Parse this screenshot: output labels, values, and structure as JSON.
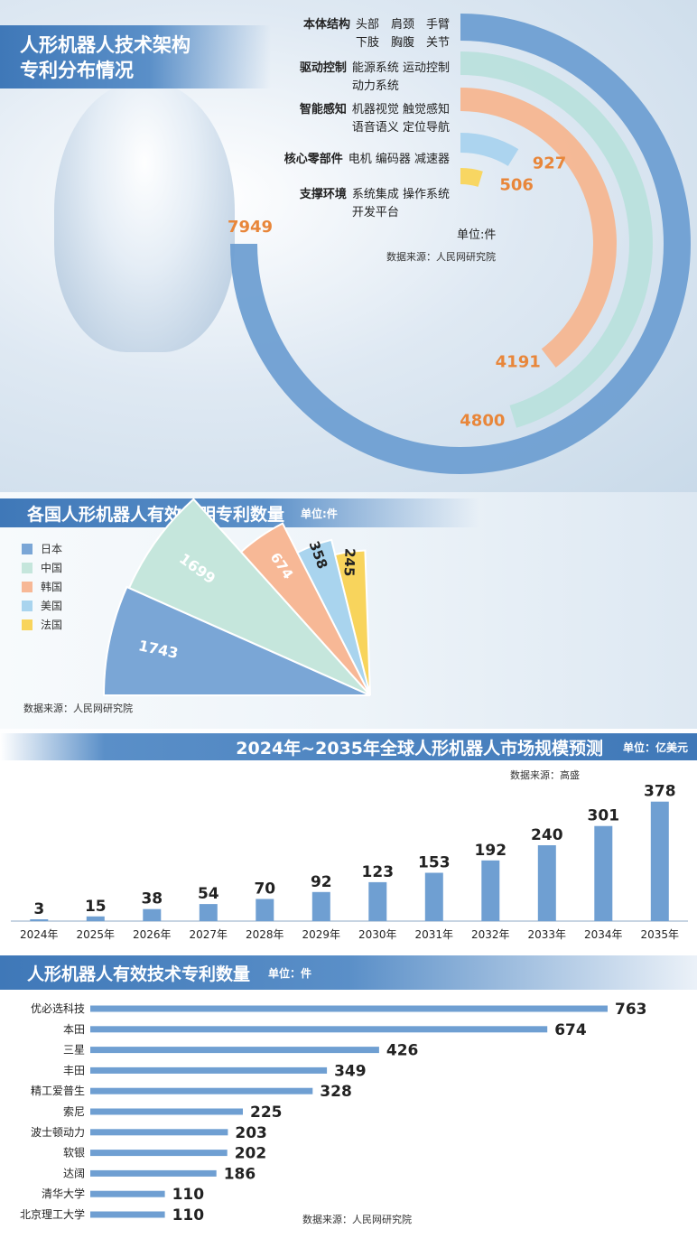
{
  "arc_section": {
    "title_line1": "人形机器人技术架构",
    "title_line2": "专利分布情况",
    "unit": "单位:件",
    "source": "数据来源：人民网研究院",
    "categories": [
      {
        "name": "本体结构",
        "items_line1": "头部　肩颈　手臂",
        "items_line2": "下肢　胸腹　关节"
      },
      {
        "name": "驱动控制",
        "items_line1": "能源系统  运动控制",
        "items_line2": "动力系统"
      },
      {
        "name": "智能感知",
        "items_line1": "机器视觉  触觉感知",
        "items_line2": "语音语义  定位导航"
      },
      {
        "name": "核心零部件",
        "items_line1": "电机  编码器  减速器",
        "items_line2": ""
      },
      {
        "name": "支撑环境",
        "items_line1": "系统集成  操作系统",
        "items_line2": "开发平台"
      }
    ]
  },
  "country_section": {
    "title": "各国人形机器人有效发明专利数量",
    "unit": "单位:件",
    "source": "数据来源：人民网研究院",
    "legend": [
      "日本",
      "中国",
      "韩国",
      "美国",
      "法国"
    ]
  },
  "market_section": {
    "title": "2024年~2035年全球人形机器人市场规模预测",
    "unit": "单位：亿美元",
    "source": "数据来源：高盛"
  },
  "company_section": {
    "title": "人形机器人有效技术专利数量",
    "unit": "单位：件",
    "source": "数据来源：人民网研究院"
  },
  "chart_data": [
    {
      "type": "bar",
      "subtype": "radial-arc",
      "categories": [
        "本体结构",
        "驱动控制",
        "智能感知",
        "核心零部件",
        "支撑环境"
      ],
      "values": [
        7949,
        4800,
        4191,
        927,
        506
      ],
      "colors": [
        "#6f9fd2",
        "#b9e0dc",
        "#f6b690",
        "#a9d3ee",
        "#f9d55a"
      ]
    },
    {
      "type": "pie",
      "subtype": "fan",
      "categories": [
        "日本",
        "中国",
        "韩国",
        "美国",
        "法国"
      ],
      "values": [
        1743,
        1699,
        674,
        358,
        245
      ],
      "colors": [
        "#7aa6d6",
        "#c5e6dc",
        "#f7b896",
        "#a9d4ee",
        "#f8d45c"
      ]
    },
    {
      "type": "bar",
      "categories": [
        "2024年",
        "2025年",
        "2026年",
        "2027年",
        "2028年",
        "2029年",
        "2030年",
        "2031年",
        "2032年",
        "2033年",
        "2034年",
        "2035年"
      ],
      "values": [
        3,
        15,
        38,
        54,
        70,
        92,
        123,
        153,
        192,
        240,
        301,
        378
      ],
      "ylim": [
        0,
        400
      ],
      "color": "#6f9fd2"
    },
    {
      "type": "bar",
      "orientation": "horizontal",
      "categories": [
        "优必选科技",
        "本田",
        "三星",
        "丰田",
        "精工爱普生",
        "索尼",
        "波士顿动力",
        "软银",
        "达阔",
        "清华大学",
        "北京理工大学"
      ],
      "values": [
        763,
        674,
        426,
        349,
        328,
        225,
        203,
        202,
        186,
        110,
        110
      ],
      "xlim": [
        0,
        800
      ],
      "color": "#6f9fd2"
    }
  ]
}
